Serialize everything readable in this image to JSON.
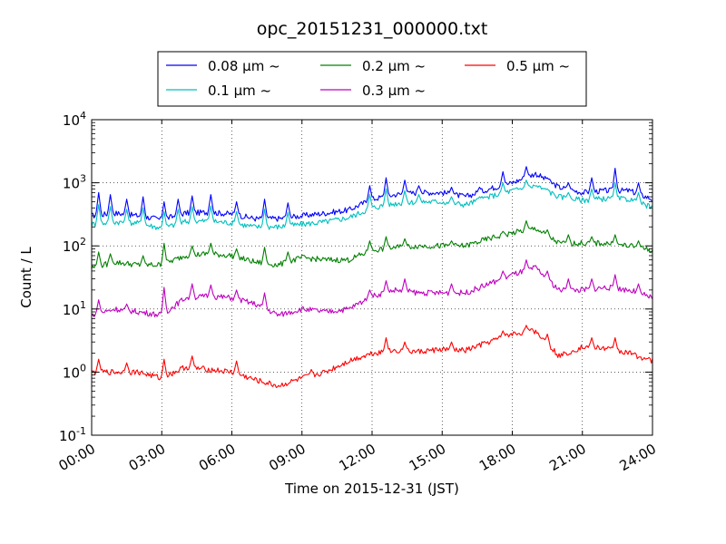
{
  "chart_data": {
    "type": "line",
    "title": "opc_20151231_000000.txt",
    "xlabel": "Time on 2015-12-31 (JST)",
    "ylabel": "Count / L",
    "yscale": "log",
    "ylim": [
      0.1,
      10000
    ],
    "xlim": [
      "00:00",
      "24:00"
    ],
    "grid": true,
    "legend_placement": "top-center",
    "x_ticks": [
      "00:00",
      "03:00",
      "06:00",
      "09:00",
      "12:00",
      "15:00",
      "18:00",
      "21:00",
      "24:00"
    ],
    "y_ticks": [
      {
        "base": "10",
        "exp": "-1",
        "value": 0.1
      },
      {
        "base": "10",
        "exp": "0",
        "value": 1
      },
      {
        "base": "10",
        "exp": "1",
        "value": 10
      },
      {
        "base": "10",
        "exp": "2",
        "value": 100
      },
      {
        "base": "10",
        "exp": "3",
        "value": 1000
      },
      {
        "base": "10",
        "exp": "4",
        "value": 10000
      }
    ],
    "series": [
      {
        "name": "0.08 μm ~",
        "color": "#0000ff",
        "knots_x": [
          0,
          1,
          2,
          3,
          4,
          5,
          6,
          7,
          8,
          9,
          10,
          11,
          12,
          13,
          14,
          15,
          16,
          17,
          18,
          19,
          20,
          21,
          22,
          23,
          24
        ],
        "knots_y": [
          300,
          330,
          300,
          260,
          330,
          340,
          320,
          270,
          270,
          300,
          330,
          370,
          550,
          650,
          700,
          700,
          600,
          800,
          1000,
          1400,
          850,
          700,
          750,
          750,
          550
        ],
        "spikes": [
          [
            0.3,
            700
          ],
          [
            0.8,
            650
          ],
          [
            1.5,
            550
          ],
          [
            2.2,
            600
          ],
          [
            3.1,
            500
          ],
          [
            3.7,
            550
          ],
          [
            4.3,
            620
          ],
          [
            5.1,
            650
          ],
          [
            6.2,
            500
          ],
          [
            7.4,
            550
          ],
          [
            8.4,
            480
          ],
          [
            11.9,
            900
          ],
          [
            12.6,
            1200
          ],
          [
            13.4,
            1100
          ],
          [
            14.0,
            900
          ],
          [
            15.4,
            850
          ],
          [
            16.6,
            850
          ],
          [
            17.6,
            1500
          ],
          [
            18.6,
            1800
          ],
          [
            19.5,
            1200
          ],
          [
            20.4,
            1000
          ],
          [
            21.4,
            1200
          ],
          [
            22.4,
            1700
          ],
          [
            23.4,
            1000
          ]
        ]
      },
      {
        "name": "0.1 μm ~",
        "color": "#00bfbf",
        "knots_x": [
          0,
          1,
          2,
          3,
          4,
          5,
          6,
          7,
          8,
          9,
          10,
          11,
          12,
          13,
          14,
          15,
          16,
          17,
          18,
          19,
          20,
          21,
          22,
          23,
          24
        ],
        "knots_y": [
          220,
          240,
          230,
          190,
          240,
          250,
          230,
          200,
          200,
          220,
          240,
          280,
          400,
          470,
          500,
          500,
          450,
          600,
          750,
          900,
          600,
          530,
          560,
          550,
          400
        ],
        "spikes": [
          [
            0.3,
            450
          ],
          [
            0.8,
            420
          ],
          [
            1.5,
            380
          ],
          [
            2.2,
            400
          ],
          [
            3.1,
            350
          ],
          [
            3.7,
            380
          ],
          [
            4.3,
            420
          ],
          [
            5.1,
            430
          ],
          [
            6.2,
            350
          ],
          [
            7.4,
            380
          ],
          [
            8.4,
            340
          ],
          [
            11.9,
            650
          ],
          [
            12.6,
            800
          ],
          [
            13.4,
            750
          ],
          [
            14.0,
            650
          ],
          [
            15.4,
            600
          ],
          [
            16.6,
            600
          ],
          [
            17.6,
            1000
          ],
          [
            18.6,
            1100
          ],
          [
            19.5,
            800
          ],
          [
            20.4,
            700
          ],
          [
            21.4,
            800
          ],
          [
            22.4,
            1000
          ],
          [
            23.4,
            700
          ]
        ]
      },
      {
        "name": "0.2 μm ~",
        "color": "#008000",
        "knots_x": [
          0,
          1,
          2,
          3,
          4,
          5,
          6,
          7,
          8,
          9,
          10,
          11,
          12,
          13,
          14,
          15,
          16,
          17,
          18,
          19,
          20,
          21,
          22,
          23,
          24
        ],
        "knots_y": [
          45,
          55,
          50,
          50,
          70,
          75,
          70,
          55,
          50,
          65,
          60,
          60,
          85,
          95,
          100,
          100,
          100,
          130,
          160,
          190,
          110,
          110,
          110,
          100,
          85
        ],
        "spikes": [
          [
            0.3,
            80
          ],
          [
            0.8,
            75
          ],
          [
            2.2,
            70
          ],
          [
            3.1,
            110
          ],
          [
            4.3,
            100
          ],
          [
            5.1,
            110
          ],
          [
            6.2,
            90
          ],
          [
            7.4,
            95
          ],
          [
            8.4,
            80
          ],
          [
            11.9,
            120
          ],
          [
            12.6,
            140
          ],
          [
            13.4,
            130
          ],
          [
            15.4,
            120
          ],
          [
            17.6,
            170
          ],
          [
            18.6,
            250
          ],
          [
            19.5,
            180
          ],
          [
            20.4,
            150
          ],
          [
            21.4,
            140
          ],
          [
            22.4,
            150
          ],
          [
            23.4,
            120
          ]
        ]
      },
      {
        "name": "0.3 μm ~",
        "color": "#bf00bf",
        "knots_x": [
          0,
          1,
          2,
          3,
          4,
          5,
          6,
          7,
          8,
          9,
          10,
          11,
          12,
          13,
          14,
          15,
          16,
          17,
          18,
          19,
          20,
          21,
          22,
          23,
          24
        ],
        "knots_y": [
          8,
          10,
          9,
          8,
          15,
          16,
          15,
          12,
          8,
          10,
          9,
          10,
          16,
          20,
          18,
          18,
          18,
          25,
          35,
          45,
          20,
          20,
          22,
          20,
          15
        ],
        "spikes": [
          [
            0.3,
            14
          ],
          [
            1.5,
            12
          ],
          [
            3.1,
            22
          ],
          [
            4.3,
            25
          ],
          [
            5.1,
            24
          ],
          [
            6.2,
            20
          ],
          [
            7.4,
            18
          ],
          [
            11.9,
            20
          ],
          [
            12.6,
            28
          ],
          [
            13.4,
            30
          ],
          [
            15.4,
            25
          ],
          [
            17.6,
            40
          ],
          [
            18.6,
            60
          ],
          [
            19.5,
            40
          ],
          [
            20.4,
            30
          ],
          [
            21.4,
            30
          ],
          [
            22.4,
            35
          ],
          [
            23.4,
            25
          ]
        ]
      },
      {
        "name": "0.5 μm ~",
        "color": "#ff0000",
        "knots_x": [
          0,
          1,
          2,
          3,
          4,
          5,
          6,
          7,
          8,
          9,
          10,
          11,
          12,
          13,
          14,
          15,
          16,
          17,
          18,
          19,
          20,
          21,
          22,
          23,
          24
        ],
        "knots_y": [
          1.0,
          1.0,
          1.0,
          0.8,
          1.2,
          1.1,
          1.0,
          0.75,
          0.6,
          0.8,
          1.0,
          1.5,
          2.0,
          2.2,
          2.1,
          2.3,
          2.2,
          3.0,
          4.0,
          4.5,
          1.8,
          2.5,
          2.4,
          2.0,
          1.5
        ],
        "spikes": [
          [
            0.3,
            1.6
          ],
          [
            1.5,
            1.4
          ],
          [
            3.1,
            1.6
          ],
          [
            4.3,
            1.8
          ],
          [
            6.2,
            1.5
          ],
          [
            9.4,
            1.1
          ],
          [
            12.6,
            3.5
          ],
          [
            13.4,
            3.0
          ],
          [
            15.4,
            3.0
          ],
          [
            17.6,
            4.5
          ],
          [
            18.6,
            5.5
          ],
          [
            19.5,
            4.0
          ],
          [
            21.4,
            3.5
          ],
          [
            22.4,
            3.5
          ]
        ]
      }
    ]
  }
}
